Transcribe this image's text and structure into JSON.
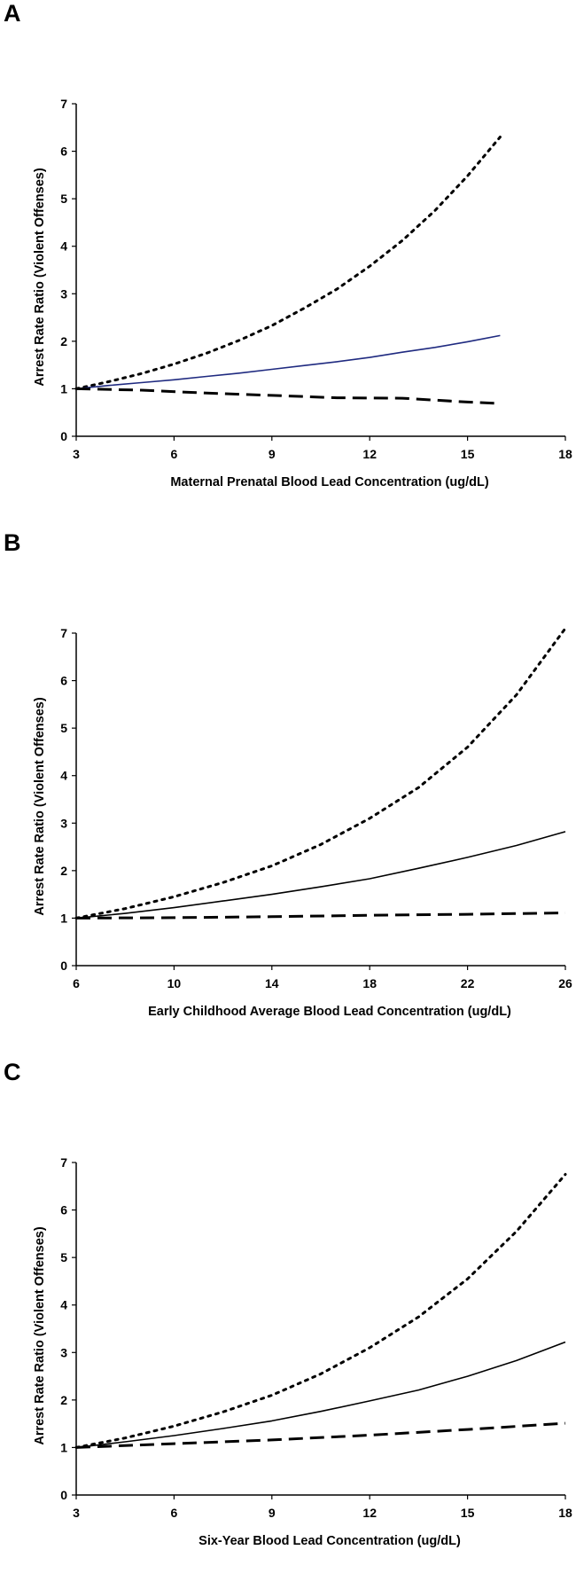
{
  "chart_data": [
    {
      "type": "line",
      "panel_label": "A",
      "xlabel": "Maternal Prenatal Blood Lead Concentration (ug/dL)",
      "ylabel": "Arrest Rate Ratio (Violent Offenses)",
      "xlim": [
        3,
        18
      ],
      "ylim": [
        0,
        7
      ],
      "xticks": [
        3,
        6,
        9,
        12,
        15,
        18
      ],
      "yticks": [
        0,
        1,
        2,
        3,
        4,
        5,
        6,
        7
      ],
      "grid": false,
      "legend": "none",
      "series": [
        {
          "style": "dotted",
          "color": "#000000",
          "points": [
            [
              3,
              1.0
            ],
            [
              4,
              1.15
            ],
            [
              5,
              1.32
            ],
            [
              6,
              1.52
            ],
            [
              7,
              1.75
            ],
            [
              8,
              2.02
            ],
            [
              9,
              2.33
            ],
            [
              10,
              2.7
            ],
            [
              11,
              3.1
            ],
            [
              12,
              3.58
            ],
            [
              13,
              4.12
            ],
            [
              14,
              4.75
            ],
            [
              15,
              5.48
            ],
            [
              16,
              6.3
            ]
          ]
        },
        {
          "style": "solid",
          "color": "#1f2a80",
          "points": [
            [
              3,
              1.0
            ],
            [
              4,
              1.07
            ],
            [
              5,
              1.13
            ],
            [
              6,
              1.19
            ],
            [
              7,
              1.26
            ],
            [
              8,
              1.33
            ],
            [
              9,
              1.41
            ],
            [
              10,
              1.49
            ],
            [
              11,
              1.57
            ],
            [
              12,
              1.66
            ],
            [
              13,
              1.77
            ],
            [
              14,
              1.87
            ],
            [
              15,
              1.99
            ],
            [
              16,
              2.12
            ]
          ]
        },
        {
          "style": "dashed",
          "color": "#000000",
          "points": [
            [
              3,
              1.0
            ],
            [
              5,
              0.97
            ],
            [
              7,
              0.91
            ],
            [
              9,
              0.86
            ],
            [
              11,
              0.81
            ],
            [
              13,
              0.8
            ],
            [
              15,
              0.72
            ],
            [
              16,
              0.69
            ]
          ]
        }
      ]
    },
    {
      "type": "line",
      "panel_label": "B",
      "xlabel": "Early Childhood Average Blood Lead Concentration (ug/dL)",
      "ylabel": "Arrest Rate Ratio (Violent Offenses)",
      "xlim": [
        6,
        26
      ],
      "ylim": [
        0,
        7
      ],
      "xticks": [
        6,
        10,
        14,
        18,
        22,
        26
      ],
      "yticks": [
        0,
        1,
        2,
        3,
        4,
        5,
        6,
        7
      ],
      "grid": false,
      "legend": "none",
      "series": [
        {
          "style": "dotted",
          "color": "#000000",
          "points": [
            [
              6,
              1.0
            ],
            [
              8,
              1.2
            ],
            [
              10,
              1.45
            ],
            [
              12,
              1.75
            ],
            [
              14,
              2.1
            ],
            [
              16,
              2.55
            ],
            [
              18,
              3.1
            ],
            [
              20,
              3.75
            ],
            [
              22,
              4.6
            ],
            [
              24,
              5.7
            ],
            [
              26,
              7.1
            ]
          ]
        },
        {
          "style": "solid",
          "color": "#000000",
          "points": [
            [
              6,
              1.0
            ],
            [
              8,
              1.1
            ],
            [
              10,
              1.22
            ],
            [
              12,
              1.36
            ],
            [
              14,
              1.5
            ],
            [
              16,
              1.66
            ],
            [
              18,
              1.83
            ],
            [
              20,
              2.05
            ],
            [
              22,
              2.28
            ],
            [
              24,
              2.53
            ],
            [
              26,
              2.82
            ]
          ]
        },
        {
          "style": "dashed",
          "color": "#000000",
          "points": [
            [
              6,
              1.0
            ],
            [
              10,
              1.01
            ],
            [
              14,
              1.03
            ],
            [
              18,
              1.06
            ],
            [
              22,
              1.08
            ],
            [
              26,
              1.11
            ]
          ]
        }
      ]
    },
    {
      "type": "line",
      "panel_label": "C",
      "xlabel": "Six-Year Blood Lead Concentration (ug/dL)",
      "ylabel": "Arrest Rate Ratio (Violent Offenses)",
      "xlim": [
        3,
        18
      ],
      "ylim": [
        0,
        7
      ],
      "xticks": [
        3,
        6,
        9,
        12,
        15,
        18
      ],
      "yticks": [
        0,
        1,
        2,
        3,
        4,
        5,
        6,
        7
      ],
      "grid": false,
      "legend": "none",
      "series": [
        {
          "style": "dotted",
          "color": "#000000",
          "points": [
            [
              3,
              1.0
            ],
            [
              4.5,
              1.2
            ],
            [
              6,
              1.45
            ],
            [
              7.5,
              1.75
            ],
            [
              9,
              2.1
            ],
            [
              10.5,
              2.55
            ],
            [
              12,
              3.1
            ],
            [
              13.5,
              3.75
            ],
            [
              15,
              4.55
            ],
            [
              16.5,
              5.55
            ],
            [
              18,
              6.75
            ]
          ]
        },
        {
          "style": "solid",
          "color": "#000000",
          "points": [
            [
              3,
              1.0
            ],
            [
              4.5,
              1.12
            ],
            [
              6,
              1.25
            ],
            [
              7.5,
              1.4
            ],
            [
              9,
              1.56
            ],
            [
              10.5,
              1.76
            ],
            [
              12,
              1.98
            ],
            [
              13.5,
              2.21
            ],
            [
              15,
              2.5
            ],
            [
              16.5,
              2.83
            ],
            [
              18,
              3.22
            ]
          ]
        },
        {
          "style": "dashed",
          "color": "#000000",
          "points": [
            [
              3,
              1.0
            ],
            [
              6,
              1.08
            ],
            [
              9,
              1.16
            ],
            [
              12,
              1.26
            ],
            [
              15,
              1.38
            ],
            [
              18,
              1.51
            ]
          ]
        }
      ]
    }
  ]
}
